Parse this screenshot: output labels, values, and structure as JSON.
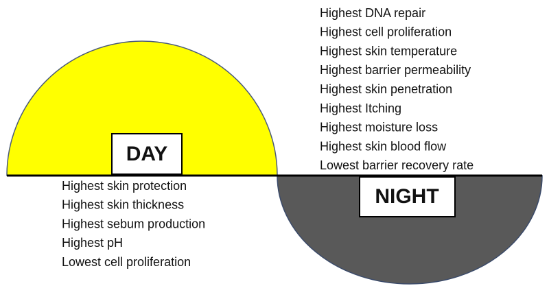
{
  "day": {
    "label": "DAY",
    "items": [
      "Highest skin protection",
      "Highest skin thickness",
      "Highest sebum production",
      "Highest pH",
      "Lowest cell proliferation"
    ]
  },
  "night": {
    "label": "NIGHT",
    "items": [
      "Highest DNA repair",
      "Highest cell proliferation",
      "Highest skin temperature",
      "Highest barrier permeability",
      "Highest skin penetration",
      "Highest Itching",
      "Highest moisture loss",
      "Highest skin blood flow",
      "Lowest barrier recovery rate"
    ]
  }
}
